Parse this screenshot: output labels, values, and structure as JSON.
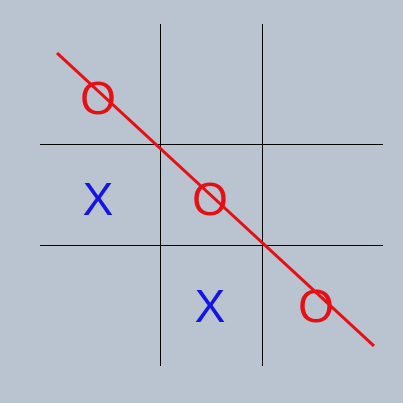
{
  "game": {
    "board": [
      [
        "O",
        "",
        ""
      ],
      [
        "X",
        "O",
        ""
      ],
      [
        "",
        "X",
        "O"
      ]
    ],
    "winning_line": "diagonal-top-left-to-bottom-right",
    "colors": {
      "background": "#b9c4d0",
      "grid": "#000000",
      "x_mark": "#1414e6",
      "o_mark": "#e60f14",
      "win_line": "#e60f14"
    }
  }
}
